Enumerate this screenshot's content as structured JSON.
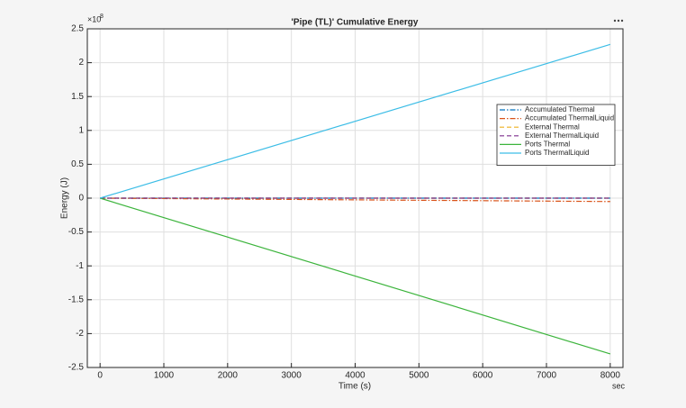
{
  "chart_data": {
    "type": "line",
    "title": "'Pipe (TL)' Cumulative Energy",
    "xlabel": "Time (s)",
    "ylabel": "Energy (J)",
    "x_unit": "sec",
    "y_exponent_base": "×10",
    "y_exponent": 8,
    "x": [
      0,
      8000
    ],
    "xlim": [
      -200,
      8200
    ],
    "xticks": [
      0,
      1000,
      2000,
      3000,
      4000,
      5000,
      6000,
      7000,
      8000
    ],
    "ylim": [
      -2.5,
      2.5
    ],
    "yticks": [
      -2.5,
      -2,
      -1.5,
      -1,
      -0.5,
      0,
      0.5,
      1,
      1.5,
      2,
      2.5
    ],
    "grid": true,
    "legend": "upper right",
    "series": [
      {
        "name": "Accumulated Thermal",
        "color": "#0072bd",
        "style": "dashdot",
        "values": [
          0,
          0
        ]
      },
      {
        "name": "Accumulated ThermalLiquid",
        "color": "#d95319",
        "style": "dashdot",
        "values": [
          0,
          -0.05
        ]
      },
      {
        "name": "External Thermal",
        "color": "#edb120",
        "style": "dashed",
        "values": [
          0,
          0
        ]
      },
      {
        "name": "External ThermalLiquid",
        "color": "#7e2f8e",
        "style": "dashed",
        "values": [
          0,
          0
        ]
      },
      {
        "name": "Ports Thermal",
        "color": "#3cb43c",
        "style": "solid",
        "values": [
          0,
          -2.3
        ]
      },
      {
        "name": "Ports ThermalLiquid",
        "color": "#3cbde6",
        "style": "solid",
        "values": [
          0,
          2.27
        ]
      }
    ]
  }
}
